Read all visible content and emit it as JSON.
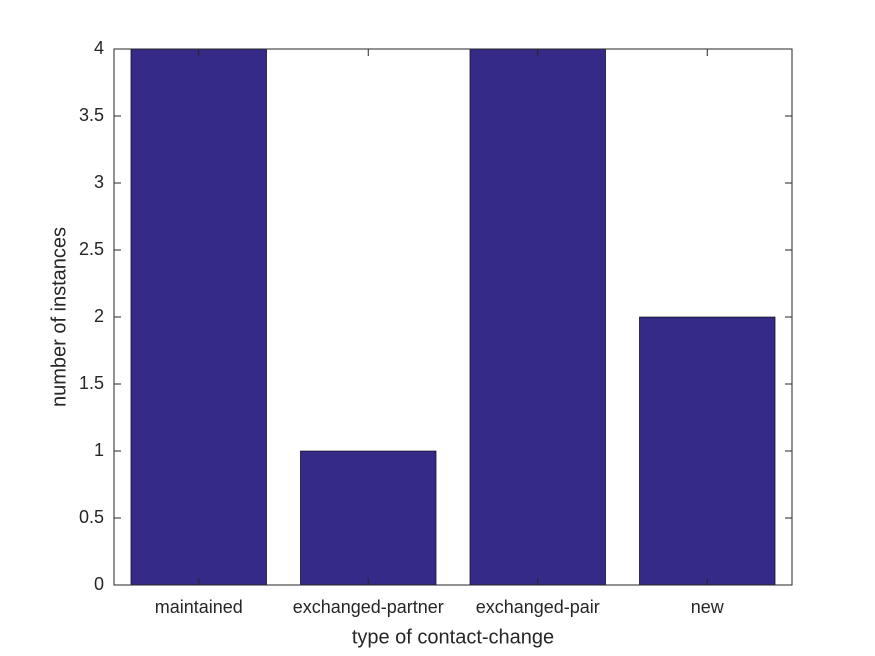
{
  "chart_data": {
    "type": "bar",
    "xlabel": "type of contact-change",
    "ylabel": "number of instances",
    "categories": [
      "maintained",
      "exchanged-partner",
      "exchanged-pair",
      "new"
    ],
    "values": [
      4,
      1,
      4,
      2
    ],
    "color": "#352a87",
    "ylim": [
      0,
      4
    ],
    "yticks": [
      0,
      0.5,
      1,
      1.5,
      2,
      2.5,
      3,
      3.5,
      4
    ],
    "grid": false
  }
}
